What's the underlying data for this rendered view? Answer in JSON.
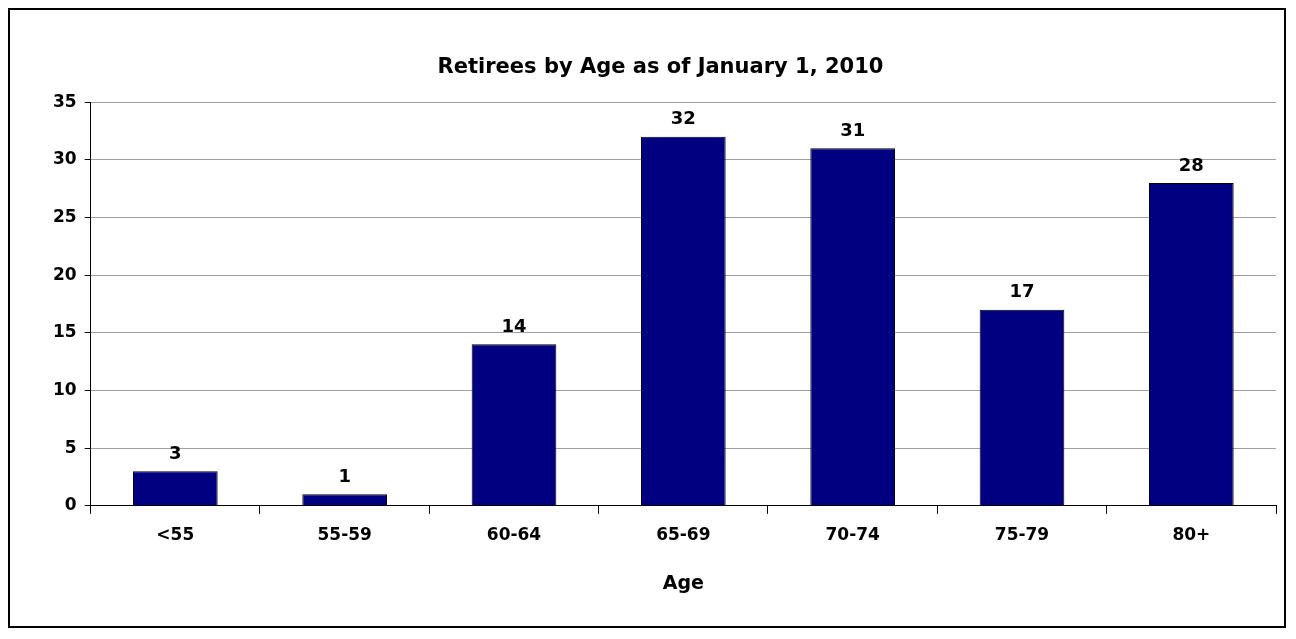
{
  "chart_data": {
    "type": "bar",
    "title": "Retirees by Age as of January 1, 2010",
    "xlabel": "Age",
    "categories": [
      "<55",
      "55-59",
      "60-64",
      "65-69",
      "70-74",
      "75-79",
      "80+"
    ],
    "values": [
      3,
      1,
      14,
      32,
      31,
      17,
      28
    ],
    "color": "#000080",
    "ylim": [
      0,
      35
    ],
    "yticks": [
      0,
      5,
      10,
      15,
      20,
      25,
      30,
      35
    ],
    "grid": "y",
    "data_labels": true,
    "legend": false
  }
}
